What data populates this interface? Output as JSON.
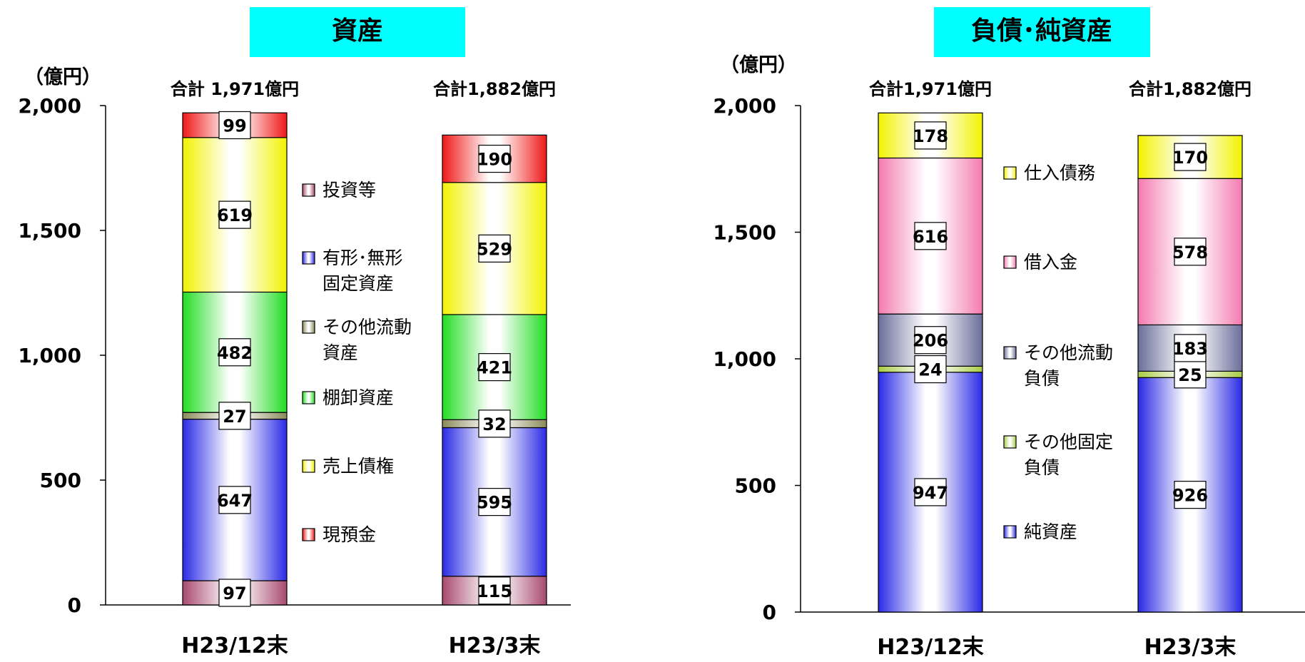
{
  "chart_data": [
    {
      "type": "bar",
      "stacked": true,
      "title": "資産",
      "ylabel": "（億円）",
      "ylim": [
        0,
        2000
      ],
      "yticks": [
        "0",
        "500",
        "1,000",
        "1,500",
        "2,000"
      ],
      "categories": [
        "H23/12末",
        "H23/3末"
      ],
      "totals": [
        "合計 1,971億円",
        "合計1,882億円"
      ],
      "legend_placement": "right-of-first-bar",
      "series": [
        {
          "name": "投資等",
          "values": [
            97,
            115
          ],
          "color": "#a84a6e"
        },
        {
          "name": "有形･無形 固定資産",
          "values": [
            647,
            595
          ],
          "color": "#2a2ae6"
        },
        {
          "name": "その他流動 資産",
          "values": [
            27,
            32
          ],
          "color": "#8a8a5a"
        },
        {
          "name": "棚卸資産",
          "values": [
            482,
            421
          ],
          "color": "#22dd22"
        },
        {
          "name": "売上債権",
          "values": [
            619,
            529
          ],
          "color": "#f2f200"
        },
        {
          "name": "現預金",
          "values": [
            99,
            190
          ],
          "color": "#f01818"
        }
      ]
    },
    {
      "type": "bar",
      "stacked": true,
      "title": "負債･純資産",
      "ylabel": "（億円）",
      "ylim": [
        0,
        2000
      ],
      "yticks": [
        "0",
        "500",
        "1,000",
        "1,500",
        "2,000"
      ],
      "categories": [
        "H23/12末",
        "H23/3末"
      ],
      "totals": [
        "合計1,971億円",
        "合計1,882億円"
      ],
      "legend_placement": "right-of-first-bar",
      "series": [
        {
          "name": "純資産",
          "values": [
            947,
            926
          ],
          "color": "#2a2ae6"
        },
        {
          "name": "その他固定 負債",
          "values": [
            24,
            25
          ],
          "color": "#a8cc44"
        },
        {
          "name": "その他流動 負債",
          "values": [
            206,
            183
          ],
          "color": "#6a6e9a"
        },
        {
          "name": "借入金",
          "values": [
            616,
            578
          ],
          "color": "#f47ab0"
        },
        {
          "name": "仕入債務",
          "values": [
            178,
            170
          ],
          "color": "#f2f200"
        }
      ]
    }
  ]
}
